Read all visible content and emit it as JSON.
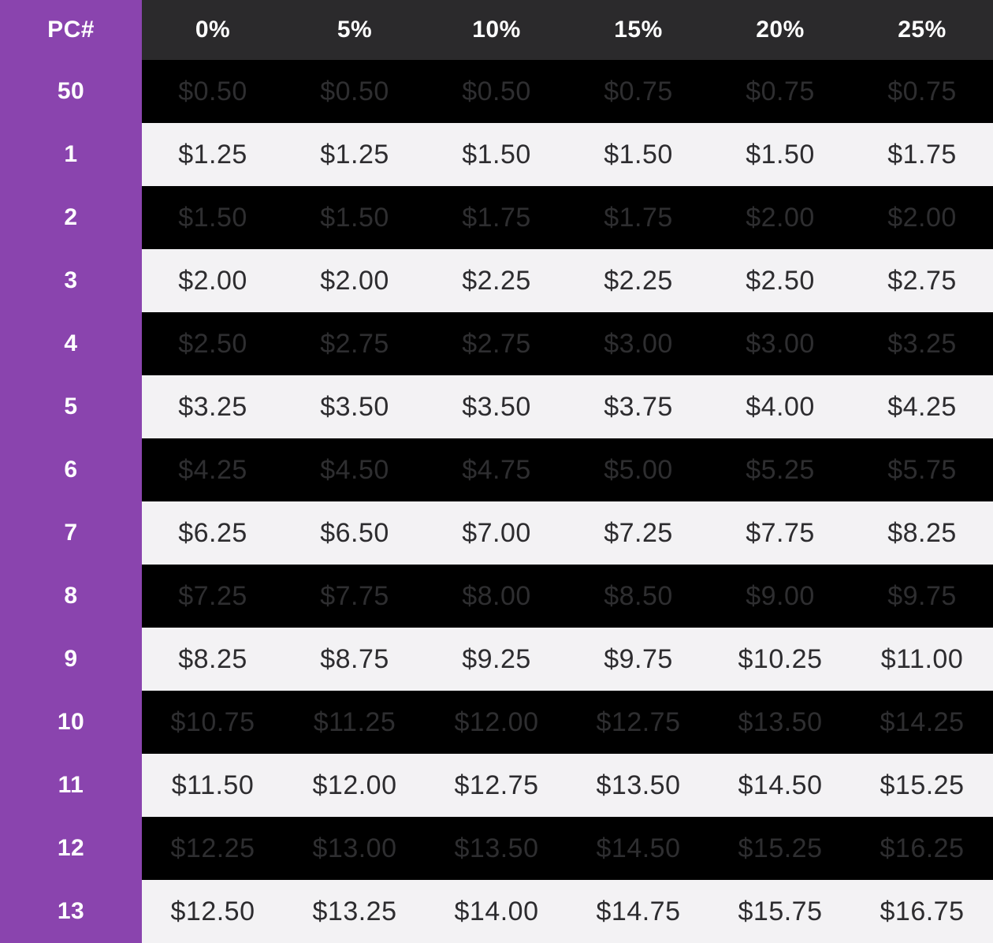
{
  "chart_data": {
    "type": "table",
    "corner_label": "PC#",
    "columns": [
      "0%",
      "5%",
      "10%",
      "15%",
      "20%",
      "25%"
    ],
    "rows": [
      {
        "label": "50",
        "values": [
          "$0.50",
          "$0.50",
          "$0.50",
          "$0.75",
          "$0.75",
          "$0.75"
        ]
      },
      {
        "label": "1",
        "values": [
          "$1.25",
          "$1.25",
          "$1.50",
          "$1.50",
          "$1.50",
          "$1.75"
        ]
      },
      {
        "label": "2",
        "values": [
          "$1.50",
          "$1.50",
          "$1.75",
          "$1.75",
          "$2.00",
          "$2.00"
        ]
      },
      {
        "label": "3",
        "values": [
          "$2.00",
          "$2.00",
          "$2.25",
          "$2.25",
          "$2.50",
          "$2.75"
        ]
      },
      {
        "label": "4",
        "values": [
          "$2.50",
          "$2.75",
          "$2.75",
          "$3.00",
          "$3.00",
          "$3.25"
        ]
      },
      {
        "label": "5",
        "values": [
          "$3.25",
          "$3.50",
          "$3.50",
          "$3.75",
          "$4.00",
          "$4.25"
        ]
      },
      {
        "label": "6",
        "values": [
          "$4.25",
          "$4.50",
          "$4.75",
          "$5.00",
          "$5.25",
          "$5.75"
        ]
      },
      {
        "label": "7",
        "values": [
          "$6.25",
          "$6.50",
          "$7.00",
          "$7.25",
          "$7.75",
          "$8.25"
        ]
      },
      {
        "label": "8",
        "values": [
          "$7.25",
          "$7.75",
          "$8.00",
          "$8.50",
          "$9.00",
          "$9.75"
        ]
      },
      {
        "label": "9",
        "values": [
          "$8.25",
          "$8.75",
          "$9.25",
          "$9.75",
          "$10.25",
          "$11.00"
        ]
      },
      {
        "label": "10",
        "values": [
          "$10.75",
          "$11.25",
          "$12.00",
          "$12.75",
          "$13.50",
          "$14.25"
        ]
      },
      {
        "label": "11",
        "values": [
          "$11.50",
          "$12.00",
          "$12.75",
          "$13.50",
          "$14.50",
          "$15.25"
        ]
      },
      {
        "label": "12",
        "values": [
          "$12.25",
          "$13.00",
          "$13.50",
          "$14.50",
          "$15.25",
          "$16.25"
        ]
      },
      {
        "label": "13",
        "values": [
          "$12.50",
          "$13.25",
          "$14.00",
          "$14.75",
          "$15.75",
          "$16.75"
        ]
      }
    ],
    "layout": {
      "first_data_row_shade": "dark",
      "row_striping": "alternating dark/light",
      "header_position": "top",
      "label_column_position": "left"
    }
  },
  "colors": {
    "accent_purple": "#8a44ae",
    "header_bg": "#2b2a2c",
    "header_text": "#ffffff",
    "label_text": "#ffffff",
    "row_dark_bg": "#000000",
    "row_dark_text": "#2e2e30",
    "row_light_bg": "#f3f2f4",
    "row_light_text": "#2d2c2f"
  }
}
